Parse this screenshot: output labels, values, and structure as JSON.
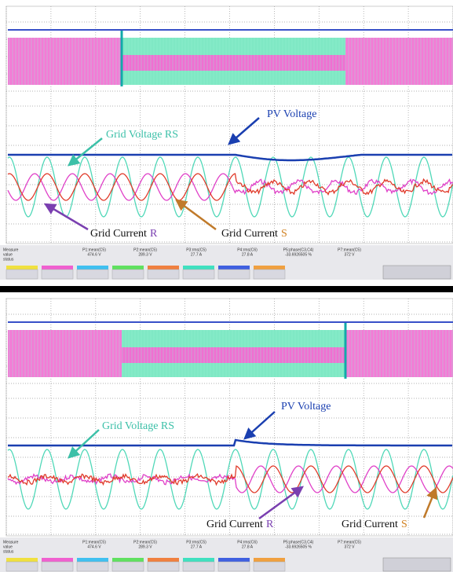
{
  "panels": [
    {
      "pv_voltage": "PV Voltage",
      "grid_voltage": "Grid Voltage RS",
      "grid_current_r": {
        "text": "Grid Current",
        "letter": "R"
      },
      "grid_current_s": {
        "text": "Grid Current",
        "letter": "S"
      },
      "measure": {
        "labels": [
          "Measure",
          "value",
          "status"
        ],
        "columns": [
          [
            "P1:mean(C5)",
            "474.6 V"
          ],
          [
            "P2:mean(C5)",
            "289.3 V"
          ],
          [
            "P3:rms(C5)",
            "27.7 A"
          ],
          [
            "P4:rms(C6)",
            "27.8 A"
          ],
          [
            "P5:phase(C3,C4)",
            "-33.6926505 %"
          ],
          [
            "P7:mean(C5)",
            "372 V"
          ]
        ]
      }
    },
    {
      "pv_voltage": "PV Voltage",
      "grid_voltage": "Grid Voltage RS",
      "grid_current_r": {
        "text": "Grid Current",
        "letter": "R"
      },
      "grid_current_s": {
        "text": "Grid Current",
        "letter": "S"
      },
      "measure": {
        "labels": [
          "Measure",
          "value",
          "status"
        ],
        "columns": [
          [
            "P1:mean(C5)",
            "474.6 V"
          ],
          [
            "P2:mean(C5)",
            "289.3 V"
          ],
          [
            "P3:rms(C5)",
            "27.7 A"
          ],
          [
            "P4:rms(C6)",
            "27.8 A"
          ],
          [
            "P5:phase(C3,C4)",
            "-33.6926505 %"
          ],
          [
            "P7:mean(C5)",
            "372 V"
          ]
        ]
      }
    }
  ]
}
